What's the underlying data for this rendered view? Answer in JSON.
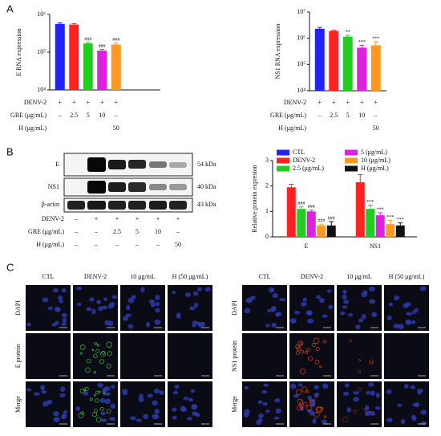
{
  "panel_labels": [
    "A",
    "B",
    "C"
  ],
  "chart_data": [
    {
      "type": "bar",
      "y_label": "E RNA expression",
      "log_scale": true,
      "ylim": [
        10000,
        1000000
      ],
      "yticks": [
        {
          "value": 10000,
          "label": "10⁴"
        },
        {
          "value": 100000,
          "label": "10⁵"
        },
        {
          "value": 1000000,
          "label": "10⁶"
        }
      ],
      "colors": [
        "#2222ff",
        "#ff2222",
        "#22cc22",
        "#dd22dd",
        "#ff9922"
      ],
      "values": [
        560000,
        540000,
        170000,
        110000,
        160000
      ],
      "errors": [
        40000,
        30000,
        10000,
        8000,
        15000
      ],
      "annotations": [
        null,
        null,
        "###",
        "###",
        "###"
      ]
    },
    {
      "type": "bar",
      "y_label": "NS1 RNA expression",
      "log_scale": true,
      "ylim": [
        10000,
        10000000
      ],
      "yticks": [
        {
          "value": 10000,
          "label": "10⁴"
        },
        {
          "value": 100000,
          "label": "10⁵"
        },
        {
          "value": 1000000,
          "label": "10⁶"
        },
        {
          "value": 10000000,
          "label": "10⁷"
        }
      ],
      "colors": [
        "#2222ff",
        "#ff2222",
        "#22cc22",
        "#dd22dd",
        "#ff9922"
      ],
      "values": [
        2300000,
        1900000,
        1150000,
        440000,
        540000
      ],
      "errors": [
        300000,
        100000,
        150000,
        100000,
        200000
      ],
      "annotations": [
        null,
        null,
        "**",
        "***",
        "***"
      ]
    },
    {
      "type": "bar",
      "y_label": "Relative protein expresion",
      "legend": "top",
      "categories": [
        "E",
        "NS1"
      ],
      "ylim": [
        0,
        3
      ],
      "yticks": [
        0,
        1,
        2,
        3
      ],
      "series": [
        {
          "name": "CTL",
          "color": "#2222ff",
          "values": [
            0,
            0
          ],
          "errors": [
            0,
            0
          ],
          "annotations": [
            null,
            null
          ]
        },
        {
          "name": "DENV-2",
          "color": "#ff2222",
          "values": [
            1.95,
            2.15
          ],
          "errors": [
            0.12,
            0.3
          ],
          "annotations": [
            null,
            null
          ]
        },
        {
          "name": "2.5 (μg/mL)",
          "color": "#22cc22",
          "values": [
            1.1,
            1.1
          ],
          "errors": [
            0.08,
            0.15
          ],
          "annotations": [
            "###",
            "***"
          ]
        },
        {
          "name": "5 (μg/mL)",
          "color": "#dd22dd",
          "values": [
            1.0,
            0.85
          ],
          "errors": [
            0.05,
            0.1
          ],
          "annotations": [
            "###",
            "***"
          ]
        },
        {
          "name": "10 (μg/mL)",
          "color": "#ff9922",
          "values": [
            0.45,
            0.5
          ],
          "errors": [
            0.05,
            0.15
          ],
          "annotations": [
            "###",
            "***"
          ]
        },
        {
          "name": "H (μg/mL)",
          "color": "#111111",
          "values": [
            0.45,
            0.45
          ],
          "errors": [
            0.15,
            0.1
          ],
          "annotations": [
            "###",
            "***"
          ]
        }
      ]
    }
  ],
  "treatments": [
    {
      "rows": [
        {
          "label": "DENV-2",
          "values": [
            "+",
            "+",
            "+",
            "+",
            "+"
          ]
        },
        {
          "label": "GRE (μg/mL)",
          "values": [
            "–",
            "2.5",
            "5",
            "10",
            "–"
          ]
        },
        {
          "label": "H (μg/mL)",
          "values": [
            null,
            null,
            null,
            null,
            "50"
          ]
        }
      ]
    },
    {
      "rows": [
        {
          "label": "DENV-2",
          "values": [
            "+",
            "+",
            "+",
            "+",
            "+"
          ]
        },
        {
          "label": "GRE (μg/mL)",
          "values": [
            "–",
            "2.5",
            "5",
            "10",
            "–"
          ]
        },
        {
          "label": "H (μg/mL)",
          "values": [
            null,
            null,
            null,
            null,
            "50"
          ]
        }
      ]
    },
    {
      "rows": [
        {
          "label": "DENV-2",
          "values": [
            "–",
            "+",
            "+",
            "+",
            "+",
            "+"
          ]
        },
        {
          "label": "GRE (μg/mL)",
          "values": [
            "–",
            "–",
            "2.5",
            "5",
            "10",
            "–"
          ]
        },
        {
          "label": "H (μg/mL)",
          "values": [
            "–",
            "–",
            "–",
            "–",
            "–",
            "50"
          ]
        }
      ]
    }
  ],
  "blot": {
    "rows": [
      {
        "label": "E",
        "size": "54 kDa"
      },
      {
        "label": "NS1",
        "size": "40 kDa"
      },
      {
        "label": "β-actin",
        "size": "43 kDa"
      }
    ]
  },
  "microscopy": [
    {
      "columns": [
        "CTL",
        "DENV-2",
        "10 μg/mL",
        "H (50 μg/mL)"
      ],
      "rows": [
        "DAPI",
        "E protein",
        "Merge"
      ]
    },
    {
      "columns": [
        "CTL",
        "DENV-2",
        "10 μg/mL",
        "H (50 μg/mL)"
      ],
      "rows": [
        "DAPI",
        "NS1 protein",
        "Merge"
      ]
    }
  ]
}
